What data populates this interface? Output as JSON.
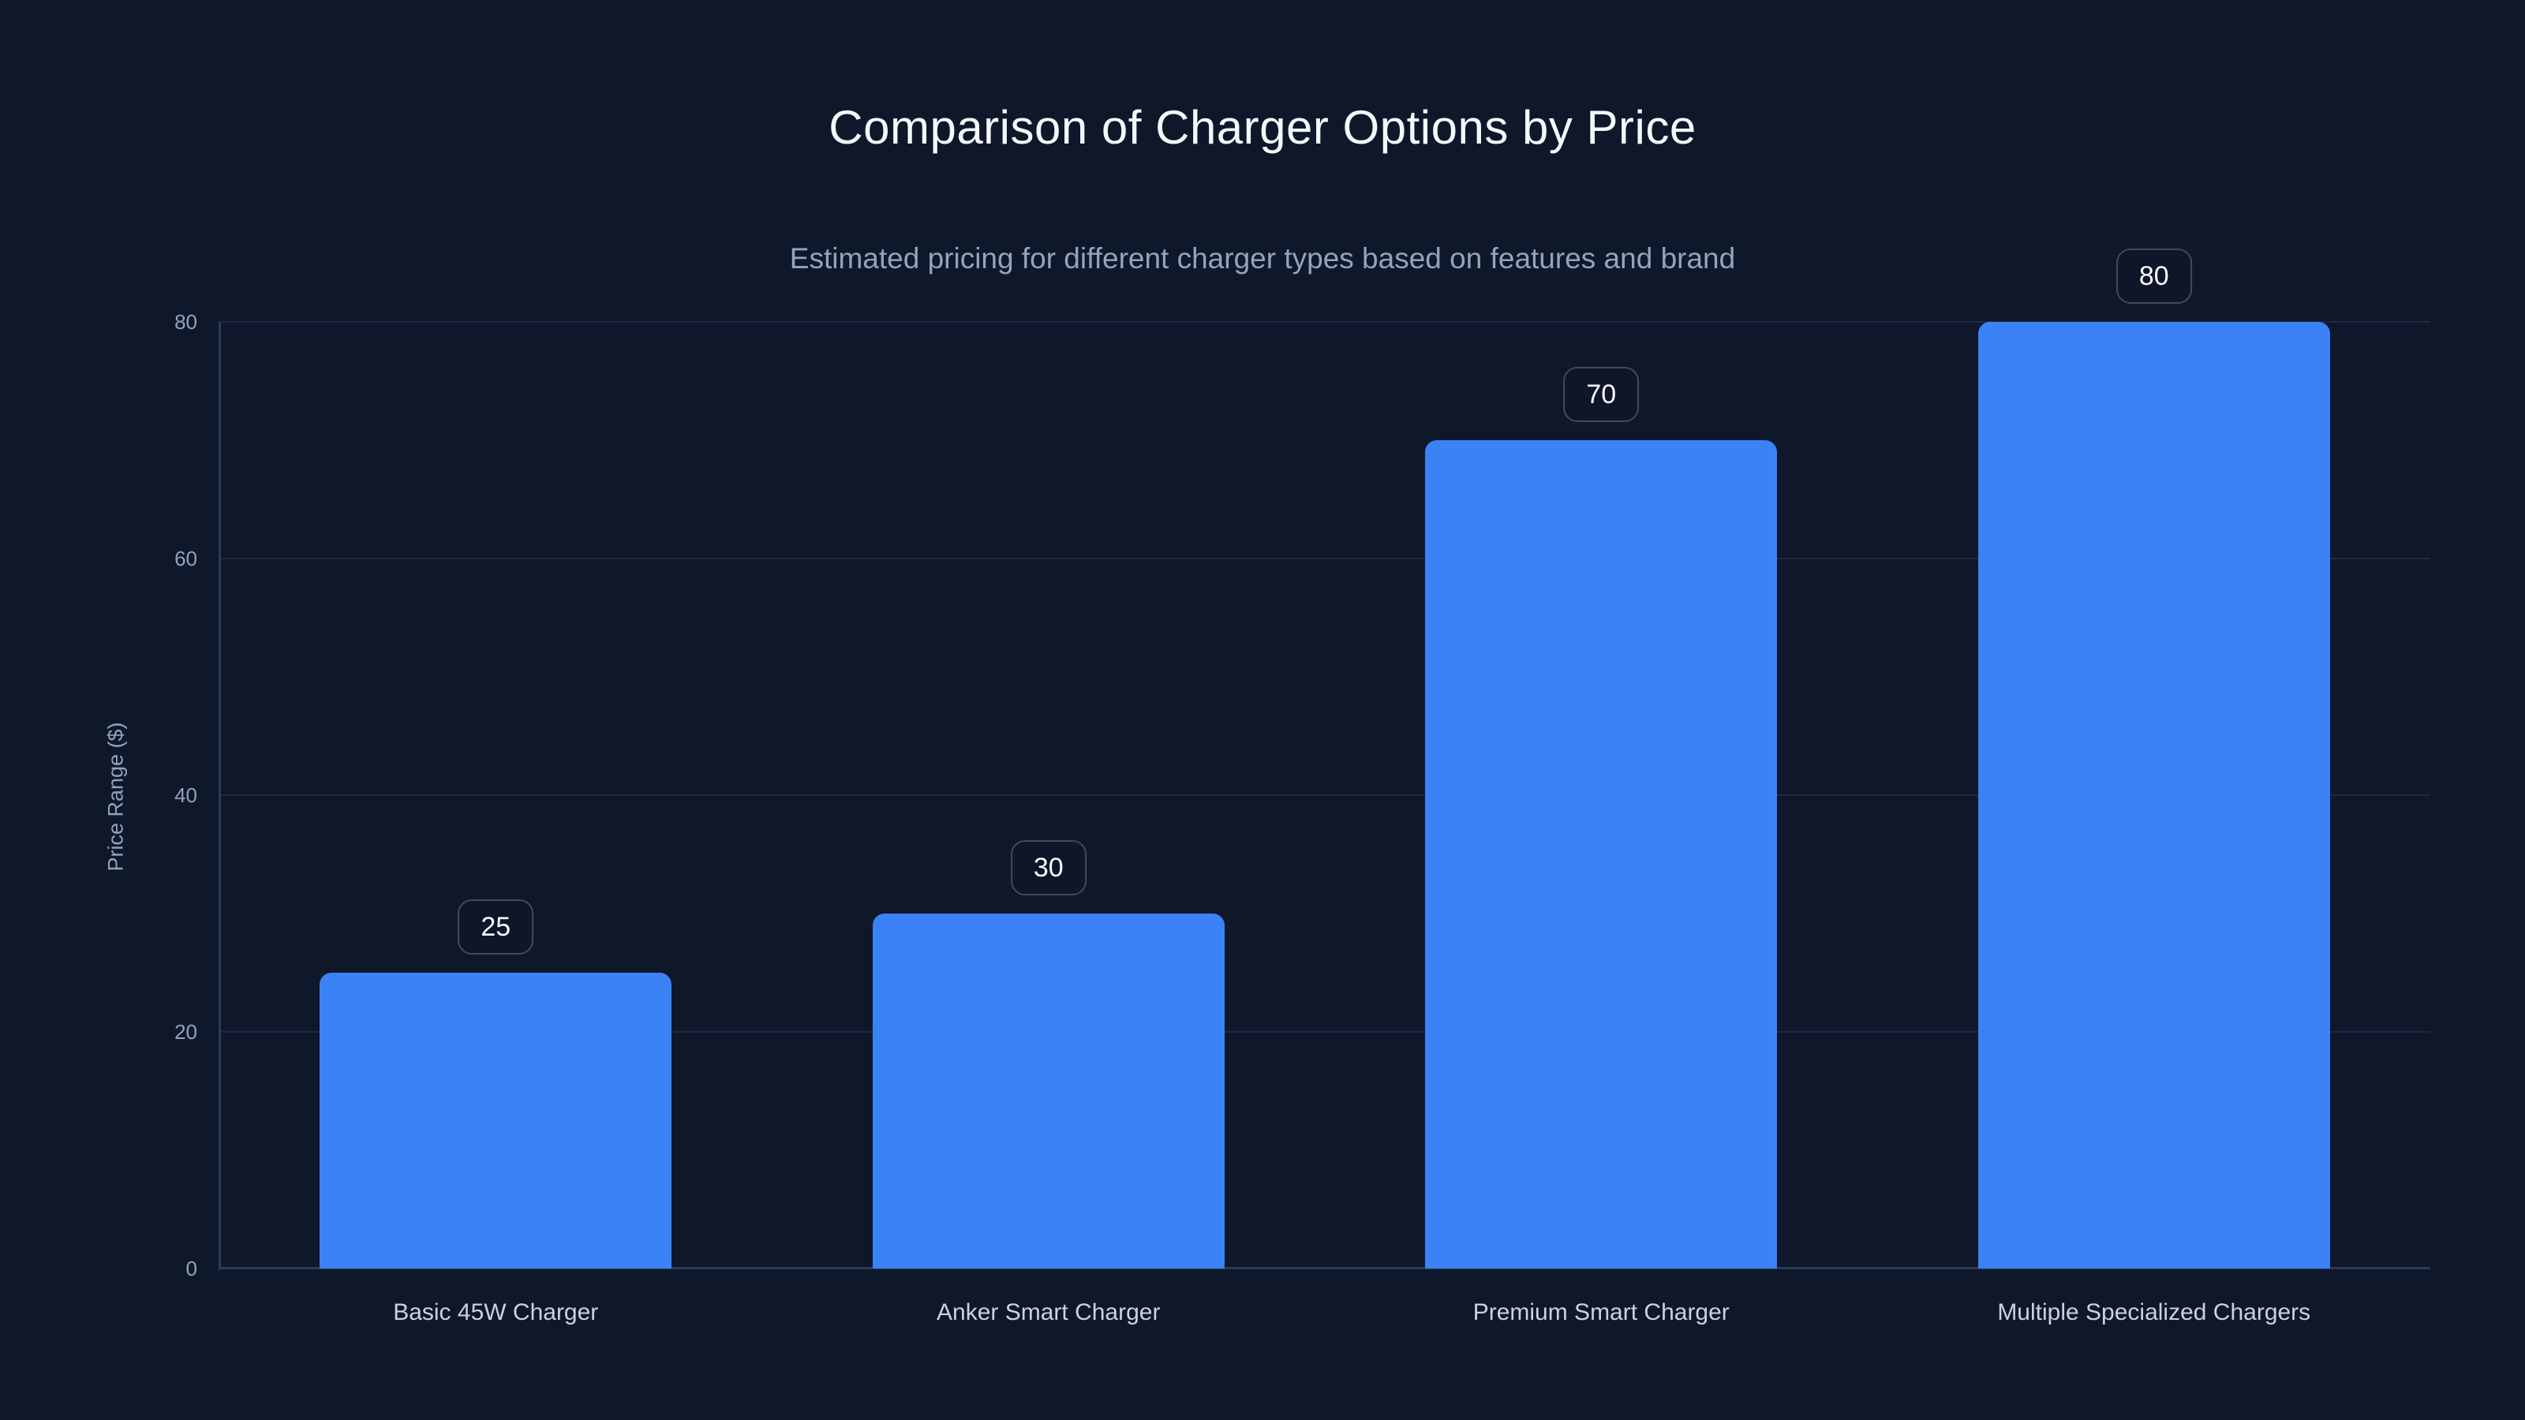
{
  "chart_data": {
    "type": "bar",
    "title": "Comparison of Charger Options by Price",
    "subtitle": "Estimated pricing for different charger types based on features and brand",
    "ylabel": "Price Range ($)",
    "xlabel": "",
    "categories": [
      "Basic 45W Charger",
      "Anker Smart Charger",
      "Premium Smart Charger",
      "Multiple Specialized Chargers"
    ],
    "values": [
      25,
      30,
      70,
      80
    ],
    "value_labels": [
      "25",
      "30",
      "70",
      "80"
    ],
    "yticks": [
      0,
      20,
      40,
      60,
      80
    ],
    "ytick_labels": [
      "0",
      "20",
      "40",
      "60",
      "80"
    ],
    "ylim": [
      0,
      80
    ],
    "grid": "horizontal",
    "legend": "none",
    "colors": {
      "background": "#0f172a",
      "bar_fill": "#3b82f6",
      "title_text": "#f4f7fb",
      "subtitle_text": "#94a3b8",
      "tick_text": "#93a2b8",
      "category_text": "#c9d3e0",
      "gridline": "#1f2940",
      "axis_line": "#2b3a55",
      "badge_border": "#3e4a5e",
      "badge_text": "#f8fafc"
    }
  }
}
